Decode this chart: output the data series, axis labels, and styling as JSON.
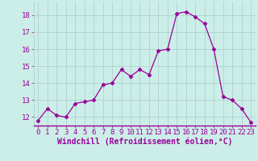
{
  "x": [
    0,
    1,
    2,
    3,
    4,
    5,
    6,
    7,
    8,
    9,
    10,
    11,
    12,
    13,
    14,
    15,
    16,
    17,
    18,
    19,
    20,
    21,
    22,
    23
  ],
  "y": [
    11.8,
    12.5,
    12.1,
    12.0,
    12.8,
    12.9,
    13.0,
    13.9,
    14.0,
    14.8,
    14.4,
    14.8,
    14.5,
    15.9,
    16.0,
    18.1,
    18.2,
    17.9,
    17.5,
    16.0,
    13.2,
    13.0,
    12.5,
    11.7
  ],
  "line_color": "#990099",
  "marker": "D",
  "marker_size": 2.5,
  "bg_color": "#cceee8",
  "grid_color": "#aacccc",
  "xlabel": "Windchill (Refroidissement éolien,°C)",
  "xlabel_color": "#990099",
  "tick_color": "#990099",
  "ylim": [
    11.5,
    18.8
  ],
  "xlim": [
    -0.5,
    23.5
  ],
  "yticks": [
    12,
    13,
    14,
    15,
    16,
    17,
    18
  ],
  "xticks": [
    0,
    1,
    2,
    3,
    4,
    5,
    6,
    7,
    8,
    9,
    10,
    11,
    12,
    13,
    14,
    15,
    16,
    17,
    18,
    19,
    20,
    21,
    22,
    23
  ],
  "tick_fontsize": 6.5,
  "xlabel_fontsize": 7.0
}
